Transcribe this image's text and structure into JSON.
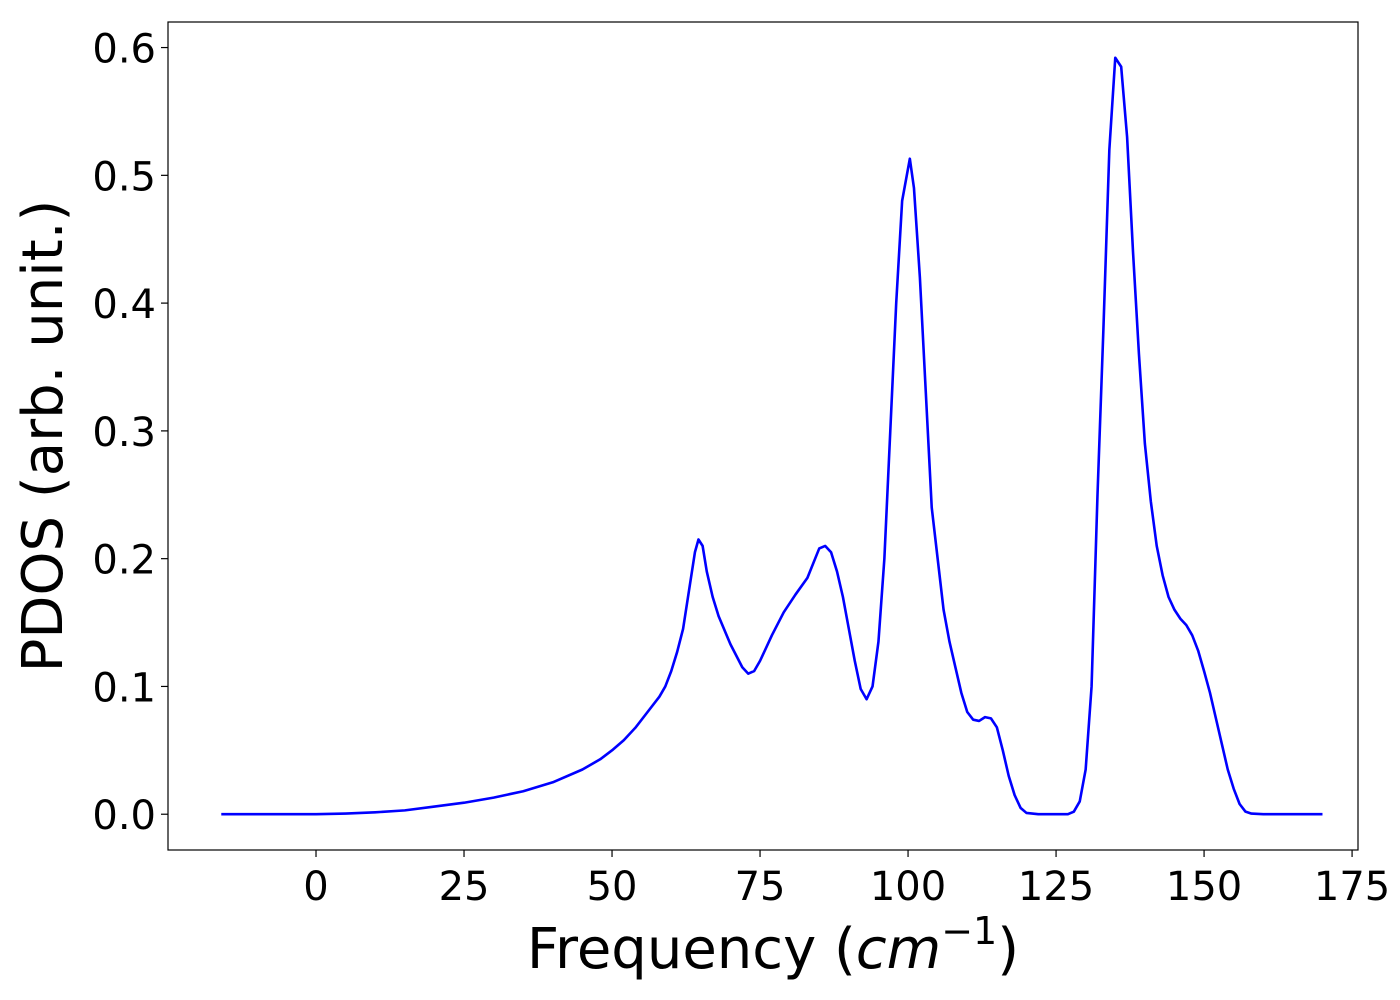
{
  "chart_data": {
    "type": "line",
    "title": "",
    "xlabel": "Frequency (cm⁻¹)",
    "xlabel_parts": {
      "prefix": "Frequency (",
      "base": "cm",
      "exponent": "−1",
      "suffix": ")"
    },
    "ylabel": "PDOS (arb. unit.)",
    "xlim": [
      -25,
      176
    ],
    "ylim": [
      -0.028,
      0.62
    ],
    "xticks": [
      0,
      25,
      50,
      75,
      100,
      125,
      150,
      175
    ],
    "xtick_labels": [
      "0",
      "25",
      "50",
      "75",
      "100",
      "125",
      "150",
      "175"
    ],
    "yticks": [
      0.0,
      0.1,
      0.2,
      0.3,
      0.4,
      0.5,
      0.6
    ],
    "ytick_labels": [
      "0.0",
      "0.1",
      "0.2",
      "0.3",
      "0.4",
      "0.5",
      "0.6"
    ],
    "grid": false,
    "legend": "none",
    "series": [
      {
        "color": "#0000ff",
        "points": [
          [
            -16,
            0
          ],
          [
            0,
            0
          ],
          [
            5,
            0.0005
          ],
          [
            10,
            0.0015
          ],
          [
            15,
            0.003
          ],
          [
            20,
            0.006
          ],
          [
            25,
            0.009
          ],
          [
            30,
            0.013
          ],
          [
            35,
            0.018
          ],
          [
            40,
            0.025
          ],
          [
            45,
            0.035
          ],
          [
            48,
            0.043
          ],
          [
            50,
            0.05
          ],
          [
            52,
            0.058
          ],
          [
            54,
            0.068
          ],
          [
            56,
            0.08
          ],
          [
            58,
            0.092
          ],
          [
            59,
            0.1
          ],
          [
            60,
            0.112
          ],
          [
            61,
            0.127
          ],
          [
            62,
            0.145
          ],
          [
            63,
            0.175
          ],
          [
            64,
            0.205
          ],
          [
            64.6,
            0.215
          ],
          [
            65.3,
            0.21
          ],
          [
            66,
            0.19
          ],
          [
            67,
            0.17
          ],
          [
            68,
            0.155
          ],
          [
            70,
            0.133
          ],
          [
            72,
            0.115
          ],
          [
            73,
            0.11
          ],
          [
            74,
            0.112
          ],
          [
            75,
            0.12
          ],
          [
            77,
            0.14
          ],
          [
            79,
            0.158
          ],
          [
            81,
            0.172
          ],
          [
            83,
            0.185
          ],
          [
            85,
            0.208
          ],
          [
            86,
            0.21
          ],
          [
            87,
            0.205
          ],
          [
            88,
            0.19
          ],
          [
            89,
            0.17
          ],
          [
            90,
            0.145
          ],
          [
            91,
            0.12
          ],
          [
            92,
            0.098
          ],
          [
            93,
            0.09
          ],
          [
            94,
            0.1
          ],
          [
            95,
            0.135
          ],
          [
            96,
            0.2
          ],
          [
            97,
            0.3
          ],
          [
            98,
            0.4
          ],
          [
            99,
            0.48
          ],
          [
            100.3,
            0.513
          ],
          [
            101,
            0.49
          ],
          [
            102,
            0.42
          ],
          [
            103,
            0.33
          ],
          [
            104,
            0.24
          ],
          [
            105,
            0.2
          ],
          [
            106,
            0.16
          ],
          [
            107,
            0.135
          ],
          [
            108,
            0.115
          ],
          [
            109,
            0.095
          ],
          [
            110,
            0.08
          ],
          [
            111,
            0.074
          ],
          [
            112,
            0.073
          ],
          [
            113,
            0.076
          ],
          [
            114,
            0.075
          ],
          [
            115,
            0.068
          ],
          [
            116,
            0.05
          ],
          [
            117,
            0.03
          ],
          [
            118,
            0.015
          ],
          [
            119,
            0.005
          ],
          [
            120,
            0.001
          ],
          [
            122,
            0
          ],
          [
            127,
            0
          ],
          [
            128,
            0.002
          ],
          [
            129,
            0.01
          ],
          [
            130,
            0.035
          ],
          [
            131,
            0.1
          ],
          [
            132,
            0.25
          ],
          [
            133,
            0.38
          ],
          [
            134,
            0.52
          ],
          [
            135,
            0.592
          ],
          [
            136,
            0.585
          ],
          [
            137,
            0.53
          ],
          [
            138,
            0.44
          ],
          [
            139,
            0.36
          ],
          [
            140,
            0.29
          ],
          [
            141,
            0.245
          ],
          [
            142,
            0.21
          ],
          [
            143,
            0.187
          ],
          [
            144,
            0.17
          ],
          [
            145,
            0.16
          ],
          [
            146,
            0.153
          ],
          [
            147,
            0.148
          ],
          [
            148,
            0.14
          ],
          [
            149,
            0.128
          ],
          [
            150,
            0.112
          ],
          [
            151,
            0.095
          ],
          [
            152,
            0.075
          ],
          [
            153,
            0.055
          ],
          [
            154,
            0.035
          ],
          [
            155,
            0.02
          ],
          [
            156,
            0.008
          ],
          [
            157,
            0.002
          ],
          [
            158,
            0.0005
          ],
          [
            160,
            0
          ],
          [
            170,
            0
          ]
        ]
      }
    ]
  }
}
